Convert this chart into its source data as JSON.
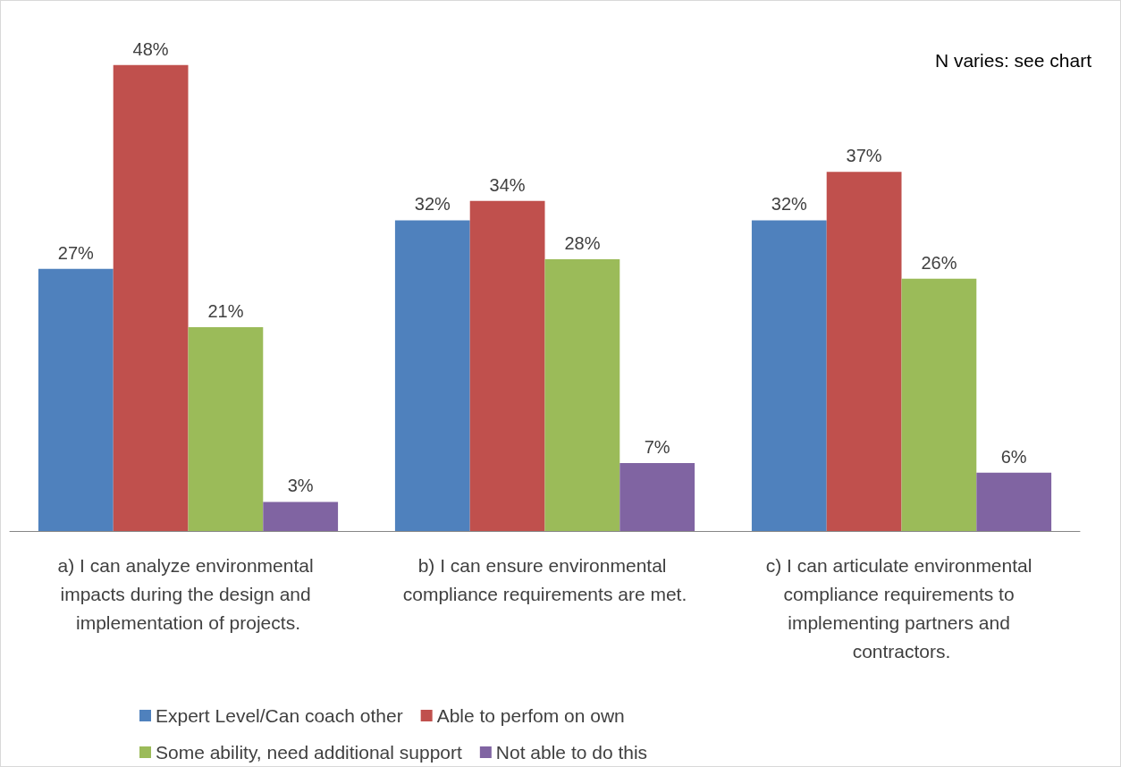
{
  "chart_data": {
    "type": "bar",
    "categories": [
      "a) I can analyze environmental impacts during the design and implementation of projects.",
      "b) I can ensure environmental compliance requirements are met.",
      "c) I can articulate environmental compliance requirements to implementing partners and contractors."
    ],
    "series": [
      {
        "name": "Expert Level/Can coach other",
        "color": "#4f81bd",
        "values": [
          27,
          32,
          32
        ],
        "value_labels": [
          "27%",
          "32%",
          "32%"
        ]
      },
      {
        "name": "Able to perfom on own",
        "color": "#c0504d",
        "values": [
          48,
          34,
          37
        ],
        "value_labels": [
          "48%",
          "34%",
          "37%"
        ]
      },
      {
        "name": "Some ability, need additional support",
        "color": "#9bbb59",
        "values": [
          21,
          28,
          26
        ],
        "value_labels": [
          "21%",
          "28%",
          "26%"
        ]
      },
      {
        "name": "Not able to do this",
        "color": "#8064a2",
        "values": [
          3,
          7,
          6
        ],
        "value_labels": [
          "3%",
          "7%",
          "6%"
        ]
      }
    ],
    "annotations": [
      "N varies: see chart"
    ],
    "legend": "bottom"
  }
}
